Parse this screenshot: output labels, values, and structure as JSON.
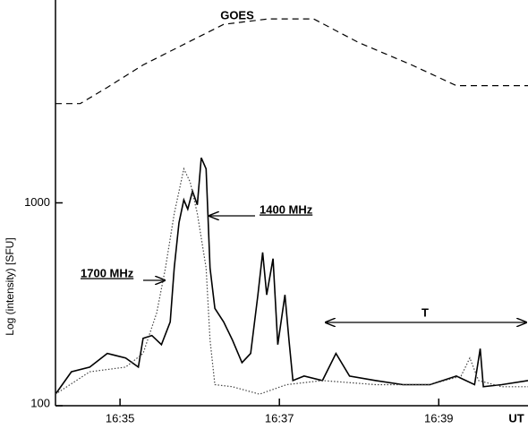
{
  "chart_data": {
    "type": "line",
    "ylabel": "Log (intensity) [SFU]",
    "xlabel": "UT",
    "log_y": true,
    "ylim": [
      100,
      10000
    ],
    "yticks": [
      100,
      1000
    ],
    "xlim": [
      34.19,
      40.12
    ],
    "xticks": [
      {
        "value": 35,
        "label": "16:35"
      },
      {
        "value": 37,
        "label": "16:37"
      },
      {
        "value": 39,
        "label": "16:39"
      }
    ],
    "annotations": [
      "GOES",
      "1400 MHz",
      "1700 MHz",
      "T"
    ],
    "series": [
      {
        "name": "1400 MHz",
        "color": "#000000",
        "dash": "solid",
        "width": 1.6,
        "x": [
          34.19,
          34.39,
          34.62,
          34.84,
          35.07,
          35.23,
          35.29,
          35.4,
          35.52,
          35.63,
          35.68,
          35.74,
          35.8,
          35.85,
          35.91,
          35.97,
          36.02,
          36.08,
          36.13,
          36.19,
          36.3,
          36.41,
          36.53,
          36.64,
          36.73,
          36.79,
          36.84,
          36.92,
          36.98,
          37.07,
          37.12,
          37.17,
          37.31,
          37.54,
          37.71,
          37.88,
          38.21,
          38.55,
          38.89,
          39.22,
          39.45,
          39.52,
          39.56,
          39.79,
          40.12
        ],
        "values": [
          114,
          147,
          155,
          181,
          172,
          155,
          215,
          222,
          200,
          259,
          478,
          798,
          1034,
          931,
          1141,
          978,
          1667,
          1472,
          478,
          302,
          259,
          211,
          163,
          181,
          352,
          570,
          352,
          531,
          200,
          352,
          211,
          133,
          140,
          133,
          181,
          140,
          133,
          127,
          127,
          140,
          127,
          191,
          124,
          127,
          133
        ]
      },
      {
        "name": "1700 MHz",
        "color": "#444444",
        "dash": "dotted",
        "width": 1.2,
        "x": [
          34.19,
          34.62,
          35.07,
          35.29,
          35.46,
          35.57,
          35.68,
          35.8,
          35.88,
          35.97,
          36.08,
          36.13,
          36.19,
          36.41,
          36.75,
          37.09,
          37.54,
          38.21,
          38.89,
          39.28,
          39.39,
          39.5,
          39.79,
          40.12
        ],
        "values": [
          114,
          147,
          155,
          181,
          287,
          478,
          885,
          1472,
          1266,
          885,
          478,
          211,
          127,
          124,
          114,
          127,
          133,
          127,
          127,
          140,
          172,
          133,
          124,
          124
        ]
      },
      {
        "name": "GOES",
        "color": "#000000",
        "dash": "dashed",
        "width": 1.2,
        "x": [
          34.19,
          34.5,
          34.84,
          35.29,
          35.74,
          36.3,
          36.86,
          37.43,
          37.99,
          38.66,
          39.22,
          39.67,
          40.12
        ],
        "values": [
          3083,
          3083,
          3707,
          4786,
          5875,
          7586,
          8072,
          8072,
          6180,
          4786,
          3784,
          3784,
          3784
        ]
      }
    ]
  }
}
